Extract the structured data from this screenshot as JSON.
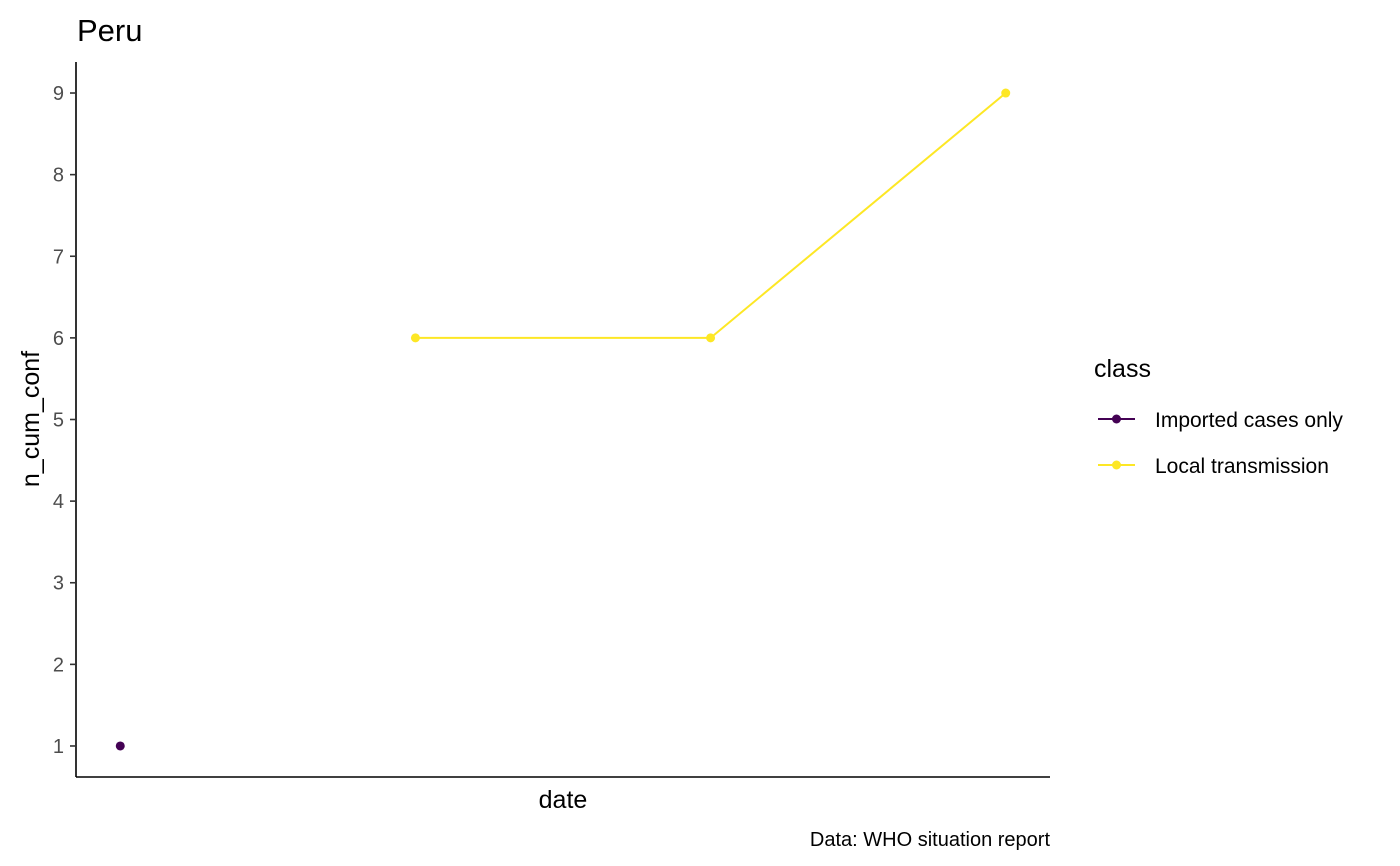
{
  "chart_data": {
    "type": "line",
    "title": "Peru",
    "xlabel": "date",
    "ylabel": "n_cum_conf",
    "caption": "Data: WHO situation report",
    "x": [
      1,
      2,
      3,
      4
    ],
    "ylim": [
      0.62,
      9.38
    ],
    "xlim": [
      0.85,
      4.15
    ],
    "yticks": [
      1,
      2,
      3,
      4,
      5,
      6,
      7,
      8,
      9
    ],
    "grid": false,
    "legend": {
      "title": "class",
      "position": "right"
    },
    "series": [
      {
        "name": "Imported cases only",
        "color": "#440154",
        "points": [
          {
            "x": 1,
            "y": 1
          }
        ]
      },
      {
        "name": "Local transmission",
        "color": "#FDE725",
        "points": [
          {
            "x": 2,
            "y": 6
          },
          {
            "x": 3,
            "y": 6
          },
          {
            "x": 4,
            "y": 9
          }
        ]
      }
    ]
  }
}
